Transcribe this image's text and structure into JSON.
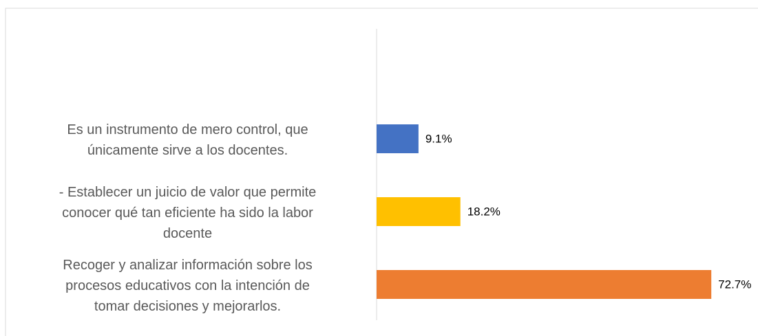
{
  "chart_data": {
    "type": "barh",
    "categories": [
      "Es un instrumento de mero control, que\núnicamente sirve a los docentes.",
      "- Establecer un juicio de valor que permite\nconocer qué tan eficiente ha sido la labor\ndocente",
      "Recoger y analizar información sobre los\nprocesos educativos con la intención de\ntomar decisiones y mejorarlos."
    ],
    "values": [
      9.1,
      18.2,
      72.7
    ],
    "value_labels": [
      "9.1%",
      "18.2%",
      "72.7%"
    ],
    "colors": [
      "#4472c4",
      "#ffc000",
      "#ed7d31"
    ],
    "xlim": [
      0,
      80
    ]
  }
}
